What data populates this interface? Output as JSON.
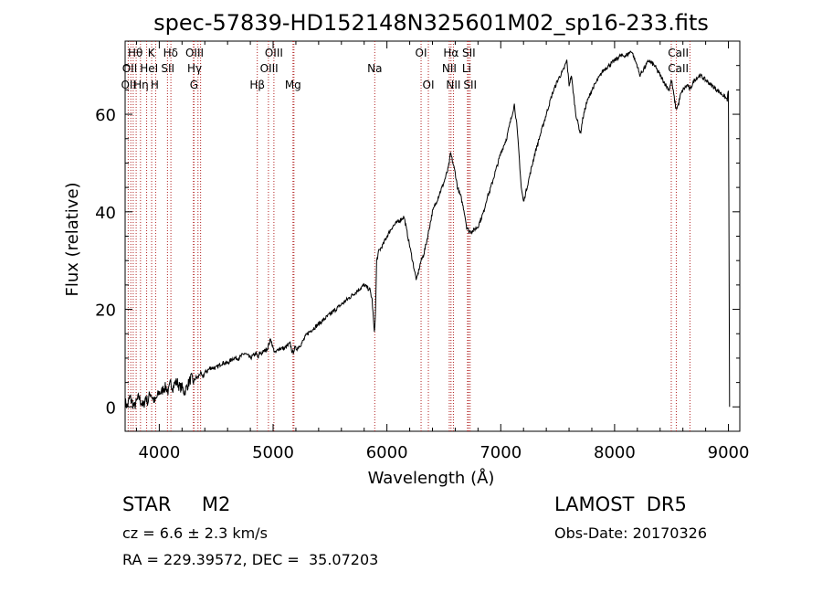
{
  "chart_data": {
    "type": "line",
    "title": "spec-57839-HD152148N325601M02_sp16-233.fits",
    "xlabel": "Wavelength (Å)",
    "ylabel": "Flux (relative)",
    "xlim": [
      3700,
      9100
    ],
    "ylim": [
      -5,
      75
    ],
    "xticks": [
      4000,
      5000,
      6000,
      7000,
      8000,
      9000
    ],
    "yticks": [
      0,
      20,
      40,
      60
    ],
    "grid": false,
    "line_color": "#000000",
    "marker_color": "#b22222",
    "series": [
      {
        "x": [
          3700,
          3720,
          3740,
          3760,
          3780,
          3800,
          3820,
          3840,
          3860,
          3880,
          3900,
          3920,
          3940,
          3960,
          3980,
          4000,
          4020,
          4040,
          4060,
          4080,
          4100,
          4120,
          4140,
          4160,
          4180,
          4200,
          4220,
          4240,
          4260,
          4280,
          4300,
          4320,
          4340,
          4360,
          4380,
          4400,
          4450,
          4500,
          4550,
          4600,
          4650,
          4700,
          4750,
          4800,
          4850,
          4870,
          4880,
          4900,
          4950,
          4980,
          5000,
          5020,
          5050,
          5100,
          5150,
          5170,
          5190,
          5210,
          5250,
          5300,
          5350,
          5400,
          5450,
          5500,
          5550,
          5600,
          5650,
          5700,
          5750,
          5800,
          5850,
          5870,
          5890,
          5900,
          5910,
          5930,
          5960,
          6000,
          6050,
          6100,
          6150,
          6200,
          6250,
          6260,
          6280,
          6300,
          6320,
          6350,
          6400,
          6450,
          6500,
          6540,
          6560,
          6580,
          6600,
          6620,
          6650,
          6680,
          6700,
          6720,
          6750,
          6800,
          6850,
          6880,
          6900,
          6950,
          7000,
          7050,
          7100,
          7120,
          7140,
          7160,
          7180,
          7200,
          7250,
          7300,
          7350,
          7400,
          7450,
          7500,
          7550,
          7580,
          7600,
          7620,
          7640,
          7660,
          7680,
          7700,
          7720,
          7750,
          7800,
          7850,
          7900,
          7950,
          8000,
          8050,
          8100,
          8150,
          8180,
          8200,
          8220,
          8250,
          8300,
          8350,
          8400,
          8450,
          8480,
          8500,
          8520,
          8540,
          8560,
          8580,
          8600,
          8640,
          8660,
          8680,
          8700,
          8750,
          8800,
          8850,
          8900,
          8950,
          8990,
          9000,
          9010
        ],
        "y": [
          1,
          0,
          2,
          1,
          0,
          1,
          2,
          1,
          0,
          2,
          1,
          3,
          2,
          1,
          2,
          3,
          3,
          4,
          4,
          3,
          5,
          4,
          5,
          5,
          4,
          4,
          3,
          4,
          5,
          6,
          5,
          6,
          6,
          7,
          6,
          7,
          8,
          8,
          9,
          9,
          10,
          10,
          11,
          10,
          11,
          10,
          11,
          11,
          12,
          14,
          12,
          11,
          12,
          12,
          13,
          11,
          12,
          12,
          13,
          15,
          16,
          17,
          18,
          19,
          20,
          21,
          22,
          23,
          24,
          25,
          24,
          22,
          15,
          20,
          30,
          32,
          33,
          35,
          37,
          38,
          39,
          33,
          27,
          26,
          28,
          30,
          31,
          34,
          40,
          43,
          46,
          49,
          52,
          50,
          48,
          45,
          43,
          40,
          37,
          36,
          36,
          37,
          40,
          43,
          44,
          48,
          52,
          55,
          60,
          62,
          58,
          52,
          45,
          42,
          47,
          52,
          56,
          60,
          64,
          67,
          69,
          71,
          66,
          68,
          64,
          60,
          58,
          56,
          59,
          62,
          65,
          67,
          69,
          70,
          71,
          72,
          72,
          73,
          71,
          70,
          68,
          69,
          71,
          70,
          68,
          66,
          65,
          67,
          64,
          61,
          62,
          64,
          65,
          66,
          65,
          66,
          67,
          68,
          67,
          66,
          65,
          64,
          63,
          65,
          0
        ]
      }
    ],
    "line_markers": {
      "row1": [
        {
          "label": "Hθ",
          "x": 3797,
          "label_x": 3790
        },
        {
          "label": "K",
          "x": 3933,
          "label_x": 3930
        },
        {
          "label": "Hδ",
          "x": 4102,
          "label_x": 4100
        },
        {
          "label": "OIII",
          "x": 4363,
          "label_x": 4310
        },
        {
          "label": "OIII",
          "x": 5007,
          "label_x": 5007
        },
        {
          "label": "OI",
          "x": 6300,
          "label_x": 6300
        },
        {
          "label": "Hα",
          "x": 6563,
          "label_x": 6563
        },
        {
          "label": "SII",
          "x": 6717,
          "label_x": 6720
        },
        {
          "label": "CaII",
          "x": 8542,
          "label_x": 8560
        }
      ],
      "row2": [
        {
          "label": "OII",
          "x": 3727,
          "label_x": 3740
        },
        {
          "label": "HeI",
          "x": 3889,
          "label_x": 3910
        },
        {
          "label": "SII",
          "x": 4072,
          "label_x": 4075
        },
        {
          "label": "Hγ",
          "x": 4340,
          "label_x": 4310
        },
        {
          "label": "OIII",
          "x": 4959,
          "label_x": 4965
        },
        {
          "label": "Na",
          "x": 5893,
          "label_x": 5893
        },
        {
          "label": "NII",
          "x": 6548,
          "label_x": 6548
        },
        {
          "label": "Li",
          "x": 6708,
          "label_x": 6700
        },
        {
          "label": "CaII",
          "x": 8498,
          "label_x": 8560
        }
      ],
      "row3": [
        {
          "label": "OII",
          "x": 3727,
          "label_x": 3730
        },
        {
          "label": "Hη",
          "x": 3835,
          "label_x": 3840
        },
        {
          "label": "H",
          "x": 3968,
          "label_x": 3960
        },
        {
          "label": "G",
          "x": 4305,
          "label_x": 4305
        },
        {
          "label": "Hβ",
          "x": 4861,
          "label_x": 4861
        },
        {
          "label": "Mg",
          "x": 5175,
          "label_x": 5175
        },
        {
          "label": "OI",
          "x": 6364,
          "label_x": 6364
        },
        {
          "label": "NII",
          "x": 6584,
          "label_x": 6584
        },
        {
          "label": "SII",
          "x": 6731,
          "label_x": 6731
        }
      ],
      "extra_lines": [
        3750,
        3771,
        3889,
        4300,
        5183,
        6563,
        8662
      ]
    }
  },
  "info": {
    "class_label": "STAR     M2",
    "survey": "LAMOST  DR5",
    "cz": "cz = 6.6 ± 2.3 km/s",
    "obs_date": "Obs-Date: 20170326",
    "coords": "RA = 229.39572, DEC =  35.07203"
  }
}
